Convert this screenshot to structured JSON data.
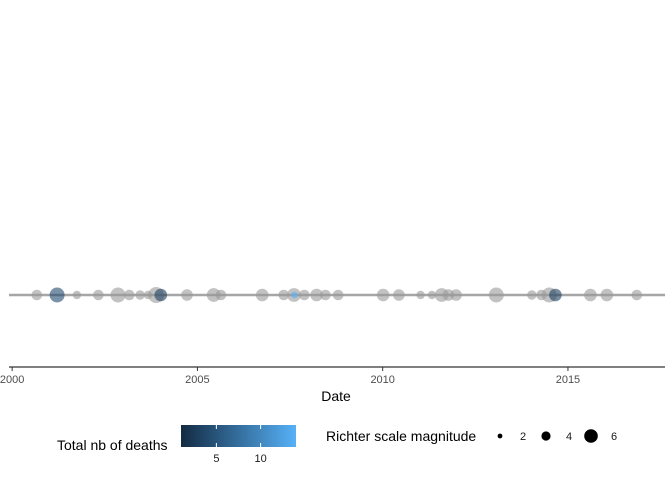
{
  "chart_data": {
    "type": "scatter",
    "title": "",
    "xlabel": "Date",
    "ylabel": "",
    "x_ticks": [
      "2000",
      "2005",
      "2010",
      "2015"
    ],
    "xlim": [
      "1999-12-01",
      "2017-08-15"
    ],
    "grid": false,
    "baseline_color": "#a6a6a6",
    "legend_position": "bottom",
    "color_legend": {
      "title": "Total nb of deaths",
      "ticks": [
        5,
        10
      ],
      "range": [
        1,
        14
      ],
      "low_color": "#132b43",
      "high_color": "#56b1f7"
    },
    "size_legend": {
      "title": "Richter scale magnitude",
      "values": [
        2,
        4,
        6
      ]
    },
    "default_point_color": "#999999",
    "points": [
      {
        "date": "2000-09-01",
        "magnitude": 3.5
      },
      {
        "date": "2001-03-20",
        "magnitude": 5.5,
        "deaths": 4
      },
      {
        "date": "2001-10-01",
        "magnitude": 2.5
      },
      {
        "date": "2002-05-01",
        "magnitude": 3.5
      },
      {
        "date": "2002-11-10",
        "magnitude": 5.5
      },
      {
        "date": "2003-03-01",
        "magnitude": 3.5
      },
      {
        "date": "2003-06-15",
        "magnitude": 3.0
      },
      {
        "date": "2003-09-01",
        "magnitude": 2.5
      },
      {
        "date": "2003-11-20",
        "magnitude": 6.0
      },
      {
        "date": "2004-01-05",
        "magnitude": 4.5,
        "deaths": 3
      },
      {
        "date": "2004-09-20",
        "magnitude": 4.0
      },
      {
        "date": "2005-06-10",
        "magnitude": 5.0
      },
      {
        "date": "2005-08-20",
        "magnitude": 3.5
      },
      {
        "date": "2006-10-01",
        "magnitude": 4.5
      },
      {
        "date": "2007-05-01",
        "magnitude": 3.5
      },
      {
        "date": "2007-08-10",
        "magnitude": 5.0
      },
      {
        "date": "2007-08-15",
        "magnitude": 1.8,
        "deaths": 14
      },
      {
        "date": "2007-11-20",
        "magnitude": 3.5
      },
      {
        "date": "2008-03-20",
        "magnitude": 4.5
      },
      {
        "date": "2008-06-15",
        "magnitude": 3.5
      },
      {
        "date": "2008-10-20",
        "magnitude": 3.5
      },
      {
        "date": "2010-01-05",
        "magnitude": 4.5
      },
      {
        "date": "2010-06-10",
        "magnitude": 4.0
      },
      {
        "date": "2011-01-10",
        "magnitude": 2.5
      },
      {
        "date": "2011-05-01",
        "magnitude": 2.5
      },
      {
        "date": "2011-08-05",
        "magnitude": 5.0
      },
      {
        "date": "2011-10-10",
        "magnitude": 4.0
      },
      {
        "date": "2011-12-25",
        "magnitude": 4.0
      },
      {
        "date": "2013-01-25",
        "magnitude": 5.5
      },
      {
        "date": "2014-01-10",
        "magnitude": 3.0
      },
      {
        "date": "2014-04-15",
        "magnitude": 3.5
      },
      {
        "date": "2014-07-01",
        "magnitude": 5.5
      },
      {
        "date": "2014-08-30",
        "magnitude": 4.5,
        "deaths": 3
      },
      {
        "date": "2015-08-10",
        "magnitude": 4.5
      },
      {
        "date": "2016-01-20",
        "magnitude": 4.5
      },
      {
        "date": "2016-11-10",
        "magnitude": 3.5
      }
    ]
  }
}
